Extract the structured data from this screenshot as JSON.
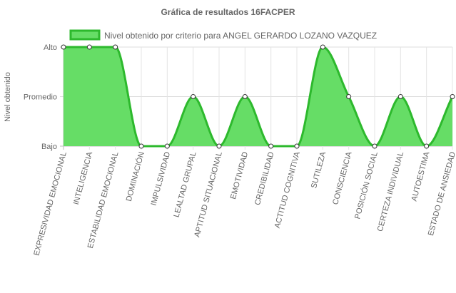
{
  "chart_data": {
    "type": "area",
    "title": "Gráfica de resultados 16FACPER",
    "ylabel": "Nivel obtenido",
    "xlabel": "",
    "y_tick_labels": [
      "Bajo",
      "Promedio",
      "Alto"
    ],
    "ylim": [
      0,
      2
    ],
    "grid": true,
    "legend_position": "top",
    "categories": [
      "EXPRESIVIDAD EMOCIONAL",
      "INTELIGENCIA",
      "ESTABILIDAD EMOCIONAL",
      "DOMINACIÓN",
      "IMPULSIVIDAD",
      "LEALTAD GRUPAL",
      "APTITUD SITUACIONAL",
      "EMOTIVIDAD",
      "CREDIBILIDAD",
      "ACTITUD COGNITIVA",
      "SUTILEZA",
      "CONSCIENCIA",
      "POSICIÓN SOCIAL",
      "CERTEZA INDIVIDUAL",
      "AUTOESTIMA",
      "ESTADO DE ANSIEDAD"
    ],
    "series": [
      {
        "name": "Nivel obtenido por criterio para ANGEL GERARDO LOZANO VAZQUEZ",
        "values": [
          2,
          2,
          2,
          0,
          0,
          1,
          0,
          1,
          0,
          0,
          2,
          1,
          0,
          1,
          0,
          1
        ],
        "line_color": "#2db92d",
        "fill_color": "#66dd66"
      }
    ]
  }
}
